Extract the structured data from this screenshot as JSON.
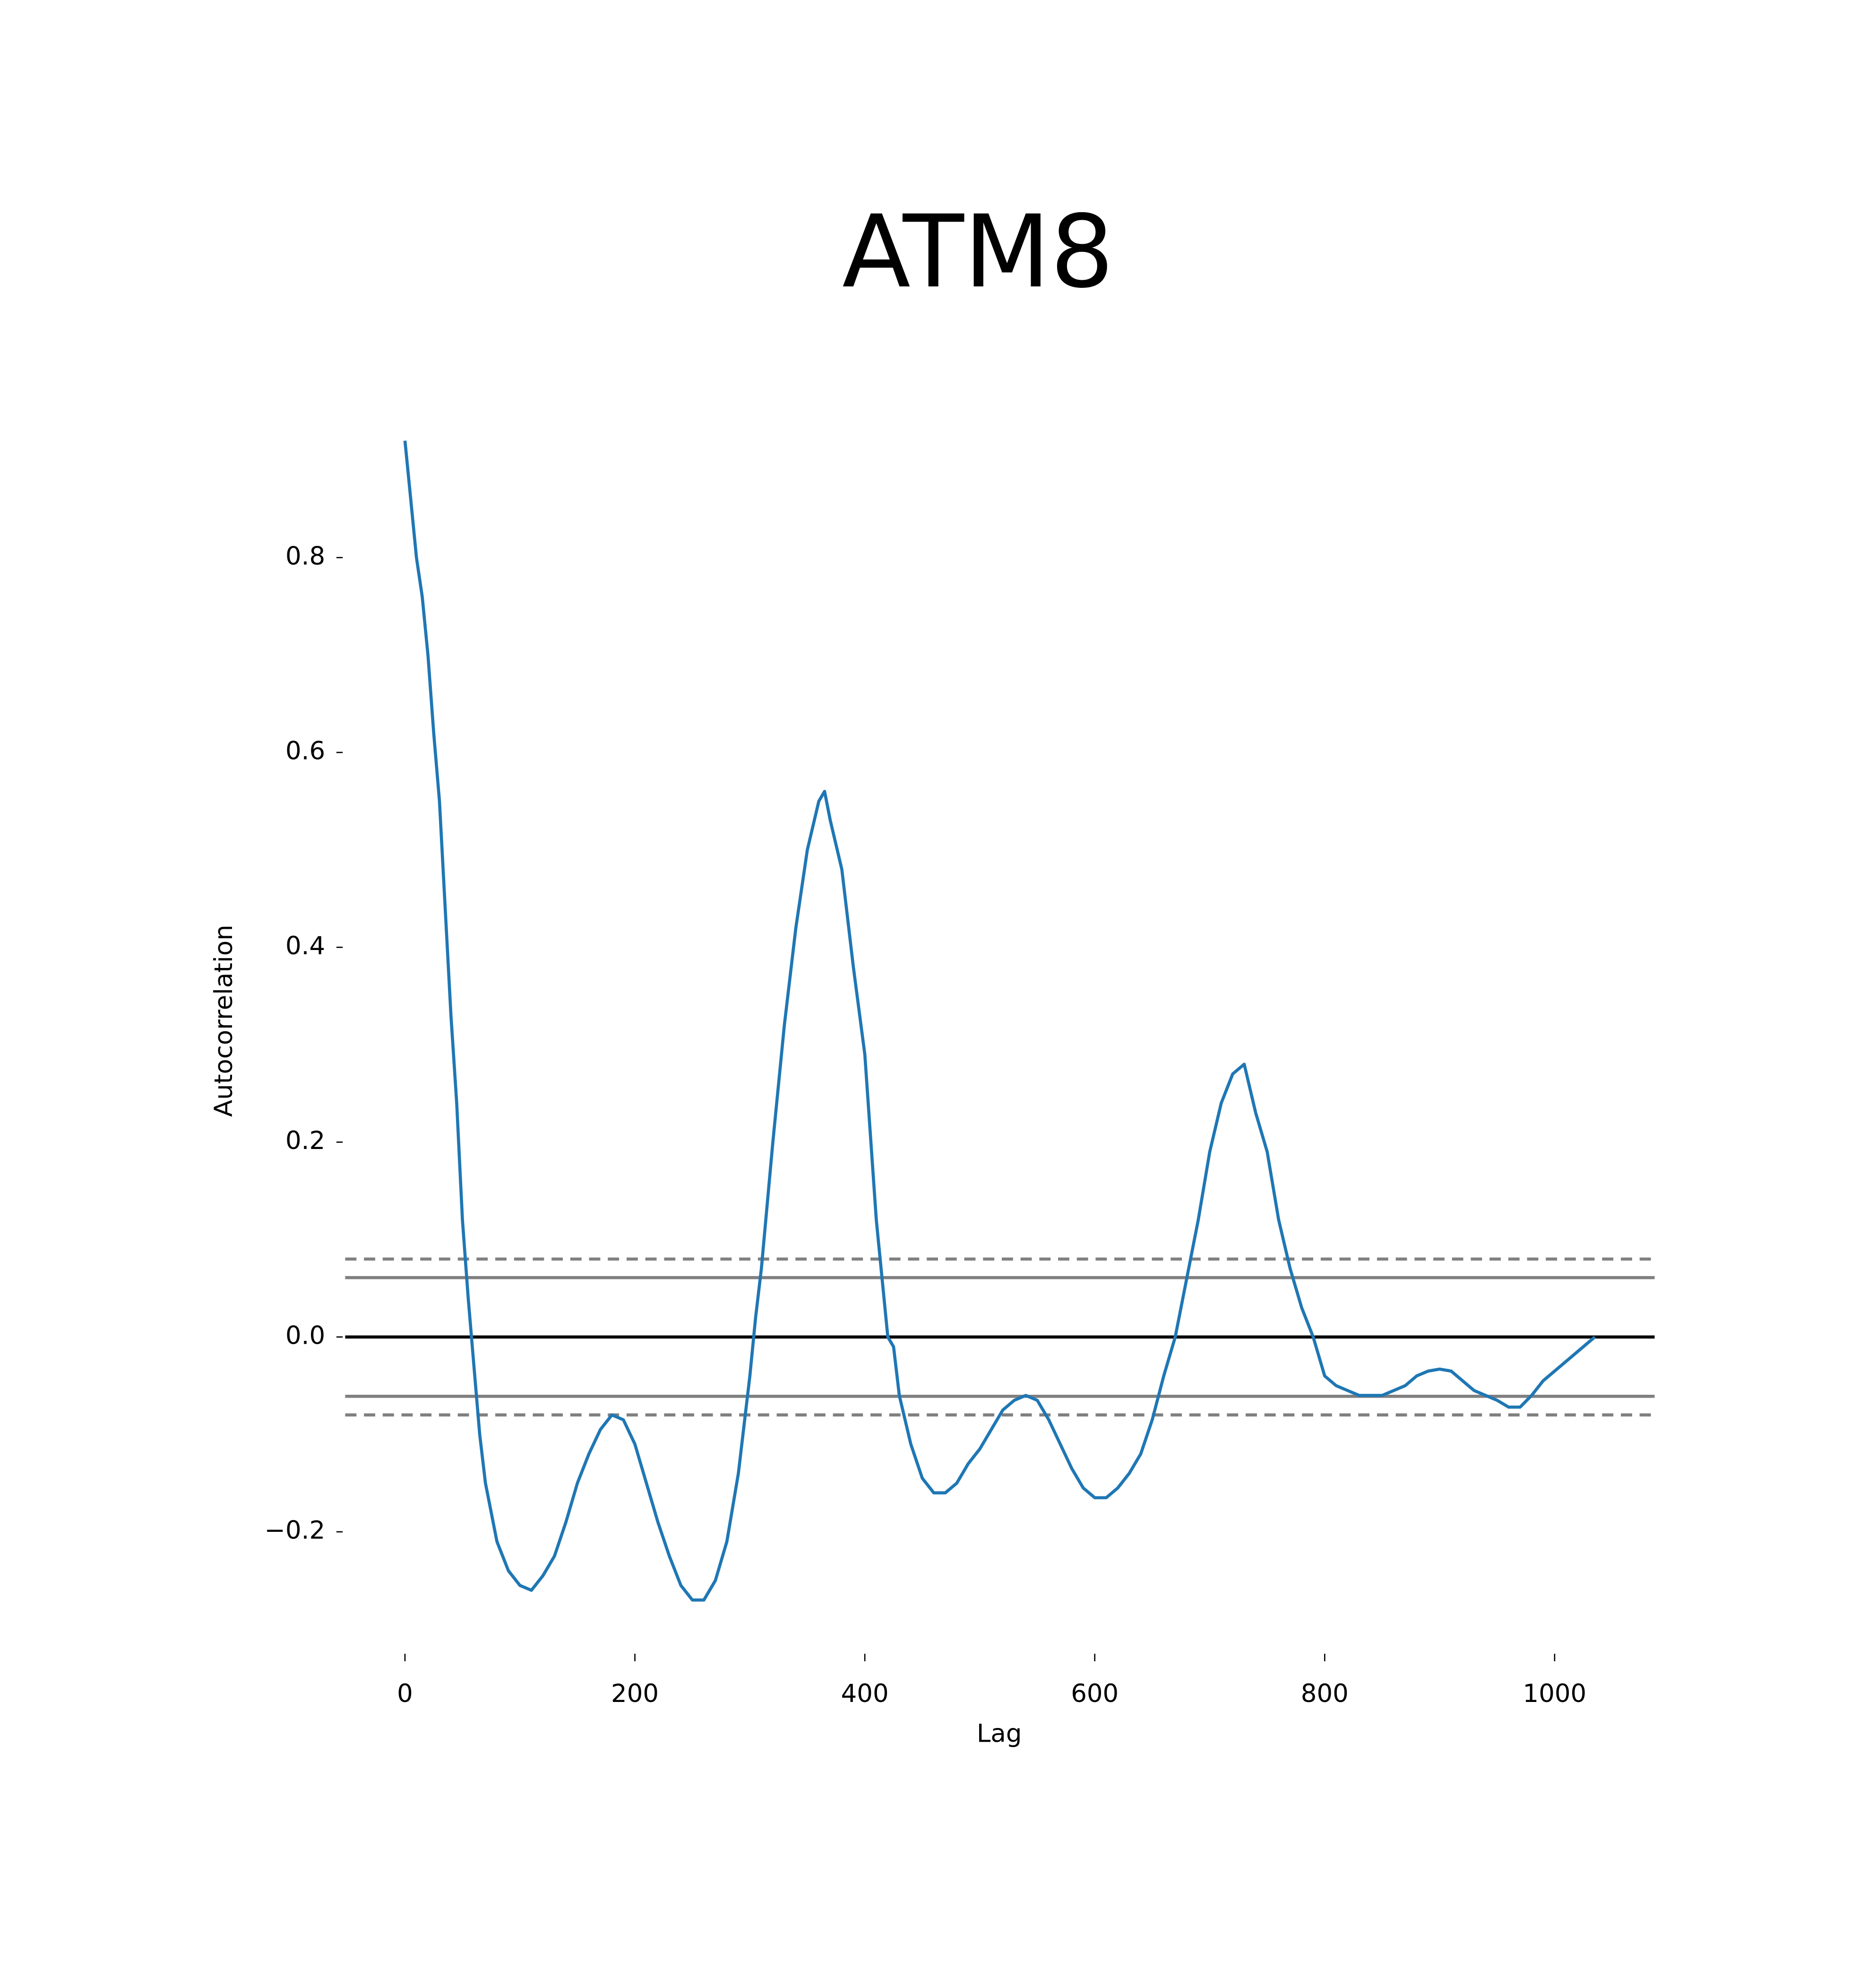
{
  "chart_data": {
    "type": "line",
    "title": "ATM8",
    "xlabel": "Lag",
    "ylabel": "Autocorrelation",
    "x": [
      0,
      5,
      10,
      15,
      20,
      25,
      30,
      35,
      40,
      45,
      50,
      55,
      60,
      65,
      70,
      80,
      90,
      100,
      110,
      120,
      130,
      140,
      150,
      160,
      170,
      180,
      190,
      200,
      210,
      220,
      230,
      240,
      250,
      260,
      270,
      280,
      290,
      300,
      305,
      310,
      320,
      330,
      340,
      350,
      360,
      365,
      370,
      380,
      390,
      400,
      410,
      420,
      425,
      430,
      440,
      450,
      460,
      470,
      480,
      490,
      500,
      510,
      520,
      530,
      540,
      550,
      560,
      570,
      580,
      590,
      600,
      610,
      620,
      630,
      640,
      650,
      660,
      670,
      680,
      690,
      700,
      710,
      720,
      730,
      740,
      750,
      760,
      770,
      780,
      790,
      800,
      810,
      820,
      830,
      840,
      850,
      860,
      870,
      880,
      890,
      900,
      910,
      920,
      930,
      940,
      950,
      960,
      970,
      980,
      990,
      1000,
      1010,
      1020,
      1030,
      1035
    ],
    "values": [
      0.92,
      0.86,
      0.8,
      0.76,
      0.7,
      0.62,
      0.55,
      0.44,
      0.33,
      0.24,
      0.12,
      0.04,
      -0.03,
      -0.1,
      -0.15,
      -0.21,
      -0.24,
      -0.255,
      -0.26,
      -0.245,
      -0.225,
      -0.19,
      -0.15,
      -0.12,
      -0.095,
      -0.08,
      -0.085,
      -0.11,
      -0.15,
      -0.19,
      -0.225,
      -0.255,
      -0.27,
      -0.27,
      -0.25,
      -0.21,
      -0.14,
      -0.04,
      0.02,
      0.07,
      0.2,
      0.32,
      0.42,
      0.5,
      0.55,
      0.56,
      0.53,
      0.48,
      0.38,
      0.29,
      0.12,
      0.0,
      -0.01,
      -0.06,
      -0.11,
      -0.145,
      -0.16,
      -0.16,
      -0.15,
      -0.13,
      -0.115,
      -0.095,
      -0.075,
      -0.065,
      -0.06,
      -0.065,
      -0.085,
      -0.11,
      -0.135,
      -0.155,
      -0.165,
      -0.165,
      -0.155,
      -0.14,
      -0.12,
      -0.085,
      -0.04,
      0.0,
      0.06,
      0.12,
      0.19,
      0.24,
      0.27,
      0.28,
      0.23,
      0.19,
      0.12,
      0.07,
      0.03,
      0.0,
      -0.04,
      -0.05,
      -0.055,
      -0.06,
      -0.06,
      -0.06,
      -0.055,
      -0.05,
      -0.04,
      -0.035,
      -0.033,
      -0.035,
      -0.045,
      -0.055,
      -0.06,
      -0.065,
      -0.072,
      -0.072,
      -0.06,
      -0.045,
      -0.035,
      -0.025,
      -0.015,
      -0.005,
      0.0
    ],
    "color": "#1f77b4",
    "xlim": [
      -52,
      1087
    ],
    "ylim": [
      -0.32,
      0.964
    ],
    "xticks": [
      0,
      200,
      400,
      600,
      800,
      1000
    ],
    "yticks": [
      {
        "value": -0.2,
        "label": "−0.2"
      },
      {
        "value": 0,
        "label": "0.0"
      },
      0.2,
      0.4,
      0.6,
      0.8
    ],
    "hlines": [
      {
        "y": 0.08,
        "color": "grey",
        "dashed": true
      },
      {
        "y": 0.0609,
        "color": "grey",
        "dashed": false
      },
      {
        "y": 0,
        "color": "black",
        "dashed": false
      },
      {
        "y": -0.0609,
        "color": "grey",
        "dashed": false
      },
      {
        "y": -0.08,
        "color": "grey",
        "dashed": true
      }
    ],
    "grid": false
  }
}
